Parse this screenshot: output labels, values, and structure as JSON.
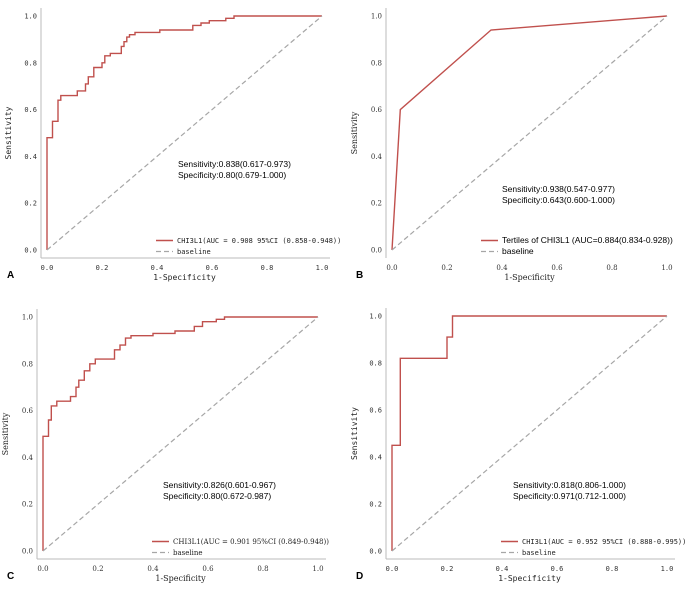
{
  "colors": {
    "roc": "#c0504d",
    "baseline": "#a6a6a6",
    "axis": "#bbbbbb"
  },
  "chart_data": [
    {
      "type": "line",
      "panel_label": "A",
      "xlabel": "1-Specificity",
      "ylabel": "Sensitivity",
      "xlim": [
        0,
        1
      ],
      "ylim": [
        0,
        1
      ],
      "xticks": [
        "0.0",
        "0.2",
        "0.4",
        "0.6",
        "0.8",
        "1.0"
      ],
      "yticks": [
        "0.0",
        "0.2",
        "0.4",
        "0.6",
        "0.8",
        "1.0"
      ],
      "annotation": [
        "Sensitivity:0.838(0.617-0.973)",
        "Specificity:0.80(0.679-1.000)"
      ],
      "legend": {
        "placement": "lower-right",
        "roc": "CHI3L1(AUC = 0.908 95%CI (0.858-0.948))",
        "baseline": "baseline"
      },
      "series": [
        {
          "name": "CHI3L1(AUC = 0.908 95%CI (0.858-0.948))",
          "points": [
            [
              0,
              0
            ],
            [
              0,
              0.48
            ],
            [
              0.02,
              0.48
            ],
            [
              0.02,
              0.55
            ],
            [
              0.04,
              0.55
            ],
            [
              0.04,
              0.64
            ],
            [
              0.05,
              0.64
            ],
            [
              0.05,
              0.66
            ],
            [
              0.11,
              0.66
            ],
            [
              0.11,
              0.68
            ],
            [
              0.14,
              0.68
            ],
            [
              0.14,
              0.71
            ],
            [
              0.15,
              0.71
            ],
            [
              0.15,
              0.74
            ],
            [
              0.17,
              0.74
            ],
            [
              0.17,
              0.78
            ],
            [
              0.2,
              0.78
            ],
            [
              0.2,
              0.8
            ],
            [
              0.21,
              0.8
            ],
            [
              0.21,
              0.83
            ],
            [
              0.23,
              0.83
            ],
            [
              0.23,
              0.84
            ],
            [
              0.27,
              0.84
            ],
            [
              0.27,
              0.87
            ],
            [
              0.28,
              0.87
            ],
            [
              0.28,
              0.89
            ],
            [
              0.29,
              0.89
            ],
            [
              0.29,
              0.91
            ],
            [
              0.3,
              0.91
            ],
            [
              0.3,
              0.92
            ],
            [
              0.32,
              0.92
            ],
            [
              0.32,
              0.93
            ],
            [
              0.41,
              0.93
            ],
            [
              0.41,
              0.94
            ],
            [
              0.53,
              0.94
            ],
            [
              0.53,
              0.96
            ],
            [
              0.56,
              0.96
            ],
            [
              0.56,
              0.97
            ],
            [
              0.59,
              0.97
            ],
            [
              0.59,
              0.98
            ],
            [
              0.65,
              0.98
            ],
            [
              0.65,
              0.99
            ],
            [
              0.68,
              0.99
            ],
            [
              0.68,
              1.0
            ],
            [
              1.0,
              1.0
            ]
          ]
        },
        {
          "name": "baseline",
          "points": [
            [
              0,
              0
            ],
            [
              1,
              1
            ]
          ]
        }
      ]
    },
    {
      "type": "line",
      "panel_label": "B",
      "xlabel": "1-Specificity",
      "ylabel": "Sensitivity",
      "xlim": [
        0,
        1
      ],
      "ylim": [
        0,
        1
      ],
      "xticks": [
        "0.0",
        "0.2",
        "0.4",
        "0.6",
        "0.8",
        "1.0"
      ],
      "yticks": [
        "0.0",
        "0.2",
        "0.4",
        "0.6",
        "0.8",
        "1.0"
      ],
      "annotation": [
        "Sensitivity:0.938(0.547-0.977)",
        "Specificity:0.643(0.600-1.000)"
      ],
      "legend": {
        "placement": "lower-right",
        "roc": "Tertiles of CHI3L1 (AUC=0.884(0.834-0.928))",
        "baseline": "baseline"
      },
      "series": [
        {
          "name": "Tertiles of CHI3L1 (AUC=0.884(0.834-0.928))",
          "points": [
            [
              0,
              0
            ],
            [
              0.03,
              0.6
            ],
            [
              0.36,
              0.94
            ],
            [
              1.0,
              1.0
            ]
          ]
        },
        {
          "name": "baseline",
          "points": [
            [
              0,
              0
            ],
            [
              1,
              1
            ]
          ]
        }
      ]
    },
    {
      "type": "line",
      "panel_label": "C",
      "xlabel": "1-Specificity",
      "ylabel": "Sensitivity",
      "xlim": [
        0,
        1
      ],
      "ylim": [
        0,
        1
      ],
      "xticks": [
        "0.0",
        "0.2",
        "0.4",
        "0.6",
        "0.8",
        "1.0"
      ],
      "yticks": [
        "0.0",
        "0.2",
        "0.4",
        "0.6",
        "0.8",
        "1.0"
      ],
      "annotation": [
        "Sensitivity:0.826(0.601-0.967)",
        "Specificity:0.80(0.672-0.987)"
      ],
      "legend": {
        "placement": "lower-right",
        "roc": "CHI3L1(AUC = 0.901 95%CI (0.849-0.948))",
        "baseline": "baseline"
      },
      "series": [
        {
          "name": "CHI3L1(AUC = 0.901 95%CI (0.849-0.948))",
          "points": [
            [
              0,
              0
            ],
            [
              0,
              0.49
            ],
            [
              0.02,
              0.49
            ],
            [
              0.02,
              0.56
            ],
            [
              0.03,
              0.56
            ],
            [
              0.03,
              0.62
            ],
            [
              0.05,
              0.62
            ],
            [
              0.05,
              0.64
            ],
            [
              0.1,
              0.64
            ],
            [
              0.1,
              0.66
            ],
            [
              0.12,
              0.66
            ],
            [
              0.12,
              0.7
            ],
            [
              0.13,
              0.7
            ],
            [
              0.13,
              0.73
            ],
            [
              0.15,
              0.73
            ],
            [
              0.15,
              0.77
            ],
            [
              0.17,
              0.77
            ],
            [
              0.17,
              0.8
            ],
            [
              0.19,
              0.8
            ],
            [
              0.19,
              0.82
            ],
            [
              0.26,
              0.82
            ],
            [
              0.26,
              0.86
            ],
            [
              0.28,
              0.86
            ],
            [
              0.28,
              0.88
            ],
            [
              0.3,
              0.88
            ],
            [
              0.3,
              0.91
            ],
            [
              0.32,
              0.91
            ],
            [
              0.32,
              0.92
            ],
            [
              0.4,
              0.92
            ],
            [
              0.4,
              0.93
            ],
            [
              0.48,
              0.93
            ],
            [
              0.48,
              0.94
            ],
            [
              0.55,
              0.94
            ],
            [
              0.55,
              0.96
            ],
            [
              0.58,
              0.96
            ],
            [
              0.58,
              0.98
            ],
            [
              0.63,
              0.98
            ],
            [
              0.63,
              0.99
            ],
            [
              0.66,
              0.99
            ],
            [
              0.66,
              1.0
            ],
            [
              1.0,
              1.0
            ]
          ]
        },
        {
          "name": "baseline",
          "points": [
            [
              0,
              0
            ],
            [
              1,
              1
            ]
          ]
        }
      ]
    },
    {
      "type": "line",
      "panel_label": "D",
      "xlabel": "1-Specificity",
      "ylabel": "Sensitivity",
      "xlim": [
        0,
        1
      ],
      "ylim": [
        0,
        1
      ],
      "xticks": [
        "0.0",
        "0.2",
        "0.4",
        "0.6",
        "0.8",
        "1.0"
      ],
      "yticks": [
        "0.0",
        "0.2",
        "0.4",
        "0.6",
        "0.8",
        "1.0"
      ],
      "annotation": [
        "Sensitivity:0.818(0.806-1.000)",
        "Specificity:0.971(0.712-1.000)"
      ],
      "legend": {
        "placement": "lower-right",
        "roc": "CHI3L1(AUC = 0.952 95%CI (0.888-0.995))",
        "baseline": "baseline"
      },
      "series": [
        {
          "name": "CHI3L1(AUC = 0.952 95%CI (0.888-0.995))",
          "points": [
            [
              0,
              0
            ],
            [
              0,
              0.45
            ],
            [
              0.03,
              0.45
            ],
            [
              0.03,
              0.82
            ],
            [
              0.2,
              0.82
            ],
            [
              0.2,
              0.91
            ],
            [
              0.22,
              0.91
            ],
            [
              0.22,
              1.0
            ],
            [
              1.0,
              1.0
            ]
          ]
        },
        {
          "name": "baseline",
          "points": [
            [
              0,
              0
            ],
            [
              1,
              1
            ]
          ]
        }
      ]
    }
  ]
}
